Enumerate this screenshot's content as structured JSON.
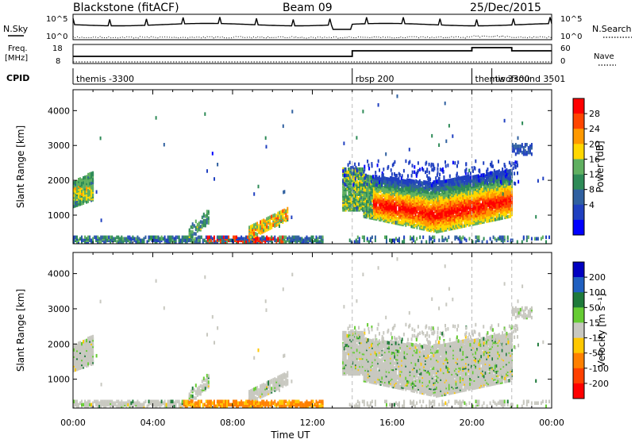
{
  "header": {
    "station": "Blackstone (fitACF)",
    "beam": "Beam 09",
    "date": "25/Dec/2015"
  },
  "labels": {
    "nsky": "N.Sky",
    "nsearch": "N.Search",
    "freq_top": "Freq.",
    "freq_unit": "[MHz]",
    "nave": "Nave",
    "cpid": "CPID",
    "ylabel": "Slant Range [km]",
    "xlabel": "Time UT",
    "power_cbar": "Power [dB]",
    "velocity_cbar": "Velocity [m s⁻¹]",
    "noise_left_hi": "10^5",
    "noise_left_lo": "10^0",
    "noise_right_hi": "10^5",
    "noise_right_lo": "10^0",
    "freq_left_hi": "18",
    "freq_left_lo": "8",
    "nave_right_hi": "60",
    "nave_right_lo": "0"
  },
  "cpid_segments": [
    {
      "label": "themis -3300",
      "start": 0.0
    },
    {
      "label": "rbsp 200",
      "start": 14.0
    },
    {
      "label": "themis 3300",
      "start": 20.0
    },
    {
      "label": "twofsound 3501",
      "start": 21.0
    }
  ],
  "chart_data": [
    {
      "type": "heatmap",
      "title": "Power",
      "xlabel": "Time UT",
      "ylabel": "Slant Range [km]",
      "x_range": [
        0,
        24
      ],
      "x_ticks": [
        "00:00",
        "04:00",
        "08:00",
        "12:00",
        "16:00",
        "20:00",
        "00:00"
      ],
      "y_range": [
        180,
        4600
      ],
      "y_ticks": [
        1000,
        2000,
        3000,
        4000
      ],
      "colorbar": {
        "label": "Power [dB]",
        "ticks": [
          4,
          8,
          12,
          16,
          20,
          24,
          28
        ],
        "range": [
          0,
          32
        ]
      },
      "regions": [
        {
          "x": [
            0.0,
            1.0
          ],
          "y": [
            1200,
            2200
          ],
          "value": 16
        },
        {
          "x": [
            5.8,
            6.8
          ],
          "y": [
            300,
            900
          ],
          "value": 12
        },
        {
          "x": [
            8.8,
            10.8
          ],
          "y": [
            300,
            1100
          ],
          "value": 20
        },
        {
          "x": [
            0.0,
            13.0
          ],
          "y": [
            180,
            350
          ],
          "value": 8
        },
        {
          "x": [
            13.5,
            22.0
          ],
          "y": [
            400,
            2300
          ],
          "value": 20
        },
        {
          "x": [
            15.5,
            21.0
          ],
          "y": [
            500,
            1300
          ],
          "value": 28
        }
      ]
    },
    {
      "type": "heatmap",
      "title": "Velocity",
      "xlabel": "Time UT",
      "ylabel": "Slant Range [km]",
      "x_range": [
        0,
        24
      ],
      "x_ticks": [
        "00:00",
        "04:00",
        "08:00",
        "12:00",
        "16:00",
        "20:00",
        "00:00"
      ],
      "y_range": [
        180,
        4600
      ],
      "y_ticks": [
        1000,
        2000,
        3000,
        4000
      ],
      "colorbar": {
        "label": "Velocity [m s⁻¹]",
        "ticks": [
          200,
          100,
          50,
          15,
          -15,
          -50,
          -100,
          -200
        ]
      },
      "regions": [
        {
          "x": [
            0.0,
            1.0
          ],
          "y": [
            1200,
            2200
          ],
          "value": 0
        },
        {
          "x": [
            5.8,
            6.8
          ],
          "y": [
            300,
            900
          ],
          "value": 0
        },
        {
          "x": [
            8.8,
            10.8
          ],
          "y": [
            300,
            1100
          ],
          "value": 0
        },
        {
          "x": [
            6.0,
            12.0
          ],
          "y": [
            180,
            350
          ],
          "value": -50
        },
        {
          "x": [
            13.5,
            22.0
          ],
          "y": [
            400,
            2300
          ],
          "value": 0
        }
      ]
    }
  ],
  "colors": {
    "power": [
      "#0000ff",
      "#2040c0",
      "#3060a0",
      "#2e8b57",
      "#60b060",
      "#ffd700",
      "#ff9900",
      "#ff4500",
      "#ff0000"
    ],
    "velocity": [
      "#0000c0",
      "#2060c0",
      "#1e7a3a",
      "#66cc33",
      "#c8c8c0",
      "#ffc800",
      "#ff8000",
      "#ff4000",
      "#ff0000"
    ]
  }
}
